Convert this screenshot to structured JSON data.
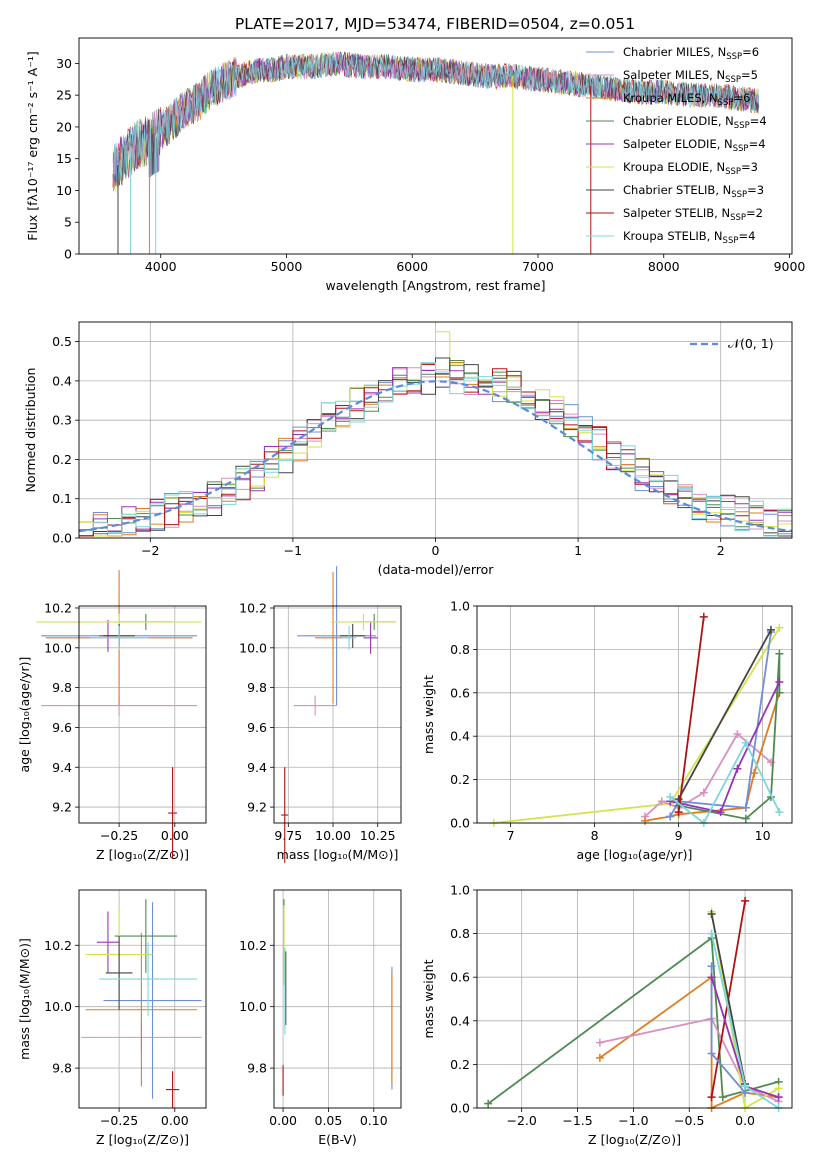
{
  "figure": {
    "title": "PLATE=2017, MJD=53474, FIBERID=0504, z=0.051"
  },
  "colors": {
    "Chabrier MILES": "#6f8fd6",
    "Salpeter MILES": "#d98fc1",
    "Kroupa MILES": "#e07b1f",
    "Chabrier ELODIE": "#4f8a52",
    "Salpeter ELODIE": "#9933b5",
    "Kroupa ELODIE": "#d4e34a",
    "Chabrier STELIB": "#444444",
    "Salpeter STELIB": "#b01212",
    "Kroupa STELIB": "#7ad8dc"
  },
  "chart_data": [
    {
      "id": "spectrum",
      "type": "line",
      "xlabel": "wavelength [Angstrom, rest frame]",
      "ylabel": "Flux [fλ10⁻¹⁷ erg cm⁻² s⁻¹ A⁻¹]",
      "xlim": [
        3350,
        9020
      ],
      "ylim": [
        0,
        34
      ],
      "xticks": [
        4000,
        5000,
        6000,
        7000,
        8000,
        9000
      ],
      "yticks": [
        0,
        5,
        10,
        15,
        20,
        25,
        30
      ],
      "grid": false,
      "legend_position": "top-right",
      "legend": [
        {
          "label": "Chabrier MILES, N",
          "sub": "SSP",
          "suffix": "=6"
        },
        {
          "label": "Salpeter MILES, N",
          "sub": "SSP",
          "suffix": "=5"
        },
        {
          "label": "Kroupa MILES, N",
          "sub": "SSP",
          "suffix": "=6"
        },
        {
          "label": "Chabrier ELODIE, N",
          "sub": "SSP",
          "suffix": "=4"
        },
        {
          "label": "Salpeter ELODIE, N",
          "sub": "SSP",
          "suffix": "=4"
        },
        {
          "label": "Kroupa ELODIE, N",
          "sub": "SSP",
          "suffix": "=3"
        },
        {
          "label": "Chabrier STELIB, N",
          "sub": "SSP",
          "suffix": "=3"
        },
        {
          "label": "Salpeter STELIB, N",
          "sub": "SSP",
          "suffix": "=2"
        },
        {
          "label": "Kroupa STELIB, N",
          "sub": "SSP",
          "suffix": "=4"
        }
      ],
      "x": [
        3620,
        3700,
        3800,
        3900,
        3980,
        4100,
        4200,
        4300,
        4400,
        4500,
        4600,
        4700,
        4800,
        4900,
        5000,
        5200,
        5400,
        5600,
        5800,
        6000,
        6200,
        6400,
        6600,
        6800,
        7000,
        7200,
        7400,
        7600,
        7800,
        8000,
        8200,
        8400,
        8600,
        8760
      ],
      "y": [
        13,
        15,
        17,
        18,
        19,
        21,
        23,
        24,
        26,
        27,
        28,
        28.5,
        29,
        29,
        29.5,
        29.5,
        30,
        29.5,
        29.5,
        29,
        29,
        28.5,
        28,
        28,
        27.5,
        27,
        26.5,
        26,
        25.5,
        25.5,
        25,
        25,
        24.5,
        24
      ]
    },
    {
      "id": "residuals",
      "type": "histogram",
      "xlabel": "(data-model)/error",
      "ylabel": "Normed distribution",
      "xlim": [
        -2.5,
        2.5
      ],
      "ylim": [
        0,
        0.55
      ],
      "xticks": [
        -2,
        -1,
        0,
        1,
        2
      ],
      "yticks": [
        0.0,
        0.1,
        0.2,
        0.3,
        0.4,
        0.5
      ],
      "grid": true,
      "legend_position": "top-right",
      "legend": [
        {
          "label": "𝒩(0, 1)"
        }
      ],
      "bin_width": 0.1,
      "bins_start": -2.5,
      "envelope": [
        0.02,
        0.02,
        0.03,
        0.04,
        0.05,
        0.06,
        0.07,
        0.08,
        0.09,
        0.1,
        0.12,
        0.14,
        0.16,
        0.19,
        0.21,
        0.24,
        0.27,
        0.3,
        0.32,
        0.34,
        0.36,
        0.38,
        0.39,
        0.4,
        0.41,
        0.42,
        0.41,
        0.4,
        0.4,
        0.39,
        0.38,
        0.36,
        0.34,
        0.32,
        0.3,
        0.27,
        0.24,
        0.21,
        0.19,
        0.16,
        0.14,
        0.12,
        0.1,
        0.09,
        0.08,
        0.07,
        0.06,
        0.05,
        0.04,
        0.03
      ]
    },
    {
      "id": "age-vs-Z",
      "type": "errorbar",
      "xlabel": "Z [log₁₀(Z/Z⊙)]",
      "ylabel": "age  [log₁₀(age/yr)]",
      "xlim": [
        -0.43,
        0.14
      ],
      "ylim": [
        9.12,
        10.21
      ],
      "xticks": [
        -0.25,
        0.0
      ],
      "yticks": [
        9.2,
        9.4,
        9.6,
        9.8,
        10.0,
        10.2
      ],
      "grid": true,
      "points": [
        {
          "series": "Chabrier MILES",
          "x": -0.25,
          "y": 10.06,
          "xerr": 0.35,
          "yerr": 0.06
        },
        {
          "series": "Salpeter MILES",
          "x": -0.25,
          "y": 9.71,
          "xerr": 0.35,
          "yerr": 0.05
        },
        {
          "series": "Kroupa MILES",
          "x": -0.25,
          "y": 10.05,
          "xerr": 0.33,
          "yerr": 0.34
        },
        {
          "series": "Chabrier ELODIE",
          "x": -0.13,
          "y": 10.13,
          "xerr": 0.12,
          "yerr": 0.04
        },
        {
          "series": "Salpeter ELODIE",
          "x": -0.3,
          "y": 10.06,
          "xerr": 0.04,
          "yerr": 0.08
        },
        {
          "series": "Kroupa ELODIE",
          "x": -0.25,
          "y": 10.13,
          "xerr": 0.37,
          "yerr": 0.04
        },
        {
          "series": "Chabrier STELIB",
          "x": -0.25,
          "y": 10.06,
          "xerr": 0.07,
          "yerr": 0.06
        },
        {
          "series": "Salpeter STELIB",
          "x": -0.01,
          "y": 9.17,
          "xerr": 0.02,
          "yerr": 0.23
        },
        {
          "series": "Kroupa STELIB",
          "x": -0.25,
          "y": 10.05,
          "xerr": 0.13,
          "yerr": 0.06
        }
      ]
    },
    {
      "id": "age-vs-mass",
      "type": "errorbar",
      "xlabel": "mass [log₁₀(M/M⊙)]",
      "ylabel": "",
      "xlim": [
        9.67,
        10.38
      ],
      "ylim": [
        9.12,
        10.21
      ],
      "xticks": [
        9.75,
        10.0,
        10.25
      ],
      "yticks": [
        9.2,
        9.4,
        9.6,
        9.8,
        10.0,
        10.2
      ],
      "grid": true,
      "points": [
        {
          "series": "Chabrier MILES",
          "x": 10.02,
          "y": 10.06,
          "xerr": 0.22,
          "yerr": 0.35
        },
        {
          "series": "Salpeter MILES",
          "x": 9.9,
          "y": 9.71,
          "xerr": 0.12,
          "yerr": 0.05
        },
        {
          "series": "Kroupa MILES",
          "x": 10.0,
          "y": 10.05,
          "xerr": 0.1,
          "yerr": 0.33
        },
        {
          "series": "Chabrier ELODIE",
          "x": 10.23,
          "y": 10.13,
          "xerr": 0.12,
          "yerr": 0.04
        },
        {
          "series": "Salpeter ELODIE",
          "x": 10.21,
          "y": 10.05,
          "xerr": 0.04,
          "yerr": 0.08
        },
        {
          "series": "Kroupa ELODIE",
          "x": 10.17,
          "y": 10.13,
          "xerr": 0.18,
          "yerr": 0.04
        },
        {
          "series": "Chabrier STELIB",
          "x": 10.11,
          "y": 10.06,
          "xerr": 0.07,
          "yerr": 0.06
        },
        {
          "series": "Salpeter STELIB",
          "x": 9.73,
          "y": 9.16,
          "xerr": 0.02,
          "yerr": 0.24
        },
        {
          "series": "Kroupa STELIB",
          "x": 10.09,
          "y": 10.05,
          "xerr": 0.04,
          "yerr": 0.06
        }
      ]
    },
    {
      "id": "mass-weight-vs-age",
      "type": "line",
      "xlabel": "age  [log₁₀(age/yr)]",
      "ylabel": "mass weight",
      "xlim": [
        6.6,
        10.35
      ],
      "ylim": [
        0,
        1.0
      ],
      "xticks": [
        7,
        8,
        9,
        10
      ],
      "yticks": [
        0.0,
        0.2,
        0.4,
        0.6,
        0.8,
        1.0
      ],
      "grid": true,
      "series": [
        {
          "name": "Kroupa ELODIE",
          "x": [
            6.8,
            8.9,
            10.2
          ],
          "y": [
            0.0,
            0.09,
            0.9
          ]
        },
        {
          "name": "Salpeter MILES",
          "x": [
            8.6,
            8.8,
            9.0,
            9.3,
            9.7,
            10.1
          ],
          "y": [
            0.03,
            0.1,
            0.07,
            0.14,
            0.41,
            0.28
          ]
        },
        {
          "name": "Kroupa MILES",
          "x": [
            8.6,
            8.9,
            9.0,
            9.8,
            9.9,
            10.2
          ],
          "y": [
            0.01,
            0.03,
            0.04,
            0.07,
            0.23,
            0.6
          ]
        },
        {
          "name": "Chabrier MILES",
          "x": [
            8.9,
            9.0,
            9.8,
            10.1
          ],
          "y": [
            0.03,
            0.1,
            0.07,
            0.88
          ]
        },
        {
          "name": "Chabrier ELODIE",
          "x": [
            9.0,
            9.8,
            10.1,
            10.2,
            10.2
          ],
          "y": [
            0.08,
            0.02,
            0.12,
            0.78,
            0.6
          ]
        },
        {
          "name": "Salpeter ELODIE",
          "x": [
            8.9,
            9.5,
            9.7,
            10.2
          ],
          "y": [
            0.1,
            0.05,
            0.25,
            0.65
          ]
        },
        {
          "name": "Chabrier STELIB",
          "x": [
            9.0,
            10.1
          ],
          "y": [
            0.11,
            0.89
          ]
        },
        {
          "name": "Salpeter STELIB",
          "x": [
            9.0,
            9.3
          ],
          "y": [
            0.05,
            0.95
          ]
        },
        {
          "name": "Kroupa STELIB",
          "x": [
            8.9,
            9.3,
            9.8,
            10.2
          ],
          "y": [
            0.12,
            0.0,
            0.37,
            0.05
          ]
        }
      ]
    },
    {
      "id": "mass-vs-Z",
      "type": "errorbar",
      "xlabel": "Z [log₁₀(Z/Z⊙)]",
      "ylabel": "mass [log₁₀(M/M⊙)]",
      "xlim": [
        -0.43,
        0.14
      ],
      "ylim": [
        9.67,
        10.38
      ],
      "xticks": [
        -0.25,
        0.0
      ],
      "yticks": [
        9.8,
        10.0,
        10.2
      ],
      "grid": true,
      "points": [
        {
          "series": "Chabrier MILES",
          "x": -0.1,
          "y": 10.02,
          "xerr": 0.22,
          "yerr": 0.32
        },
        {
          "series": "Salpeter MILES",
          "x": -0.15,
          "y": 9.9,
          "xerr": 0.27,
          "yerr": 0.05
        },
        {
          "series": "Kroupa MILES",
          "x": -0.15,
          "y": 9.99,
          "xerr": 0.25,
          "yerr": 0.25
        },
        {
          "series": "Chabrier ELODIE",
          "x": -0.13,
          "y": 10.23,
          "xerr": 0.14,
          "yerr": 0.12
        },
        {
          "series": "Salpeter ELODIE",
          "x": -0.3,
          "y": 10.21,
          "xerr": 0.05,
          "yerr": 0.1
        },
        {
          "series": "Kroupa ELODIE",
          "x": -0.25,
          "y": 10.17,
          "xerr": 0.15,
          "yerr": 0.15
        },
        {
          "series": "Chabrier STELIB",
          "x": -0.25,
          "y": 10.11,
          "xerr": 0.06,
          "yerr": 0.12
        },
        {
          "series": "Salpeter STELIB",
          "x": -0.01,
          "y": 9.73,
          "xerr": 0.03,
          "yerr": 0.06
        },
        {
          "series": "Kroupa STELIB",
          "x": -0.12,
          "y": 10.09,
          "xerr": 0.22,
          "yerr": 0.12
        }
      ]
    },
    {
      "id": "mass-vs-EBV",
      "type": "errorbar",
      "xlabel": "E(B-V)",
      "ylabel": "",
      "xlim": [
        -0.01,
        0.13
      ],
      "ylim": [
        9.67,
        10.38
      ],
      "xticks": [
        0.0,
        0.05,
        0.1
      ],
      "yticks": [
        9.8,
        10.0,
        10.2
      ],
      "grid": true,
      "points": [
        {
          "series": "Chabrier MILES",
          "x": 0.12,
          "y": 9.93,
          "xerr": 0,
          "yerr": 0.2
        },
        {
          "series": "Kroupa MILES",
          "x": 0.12,
          "y": 9.93,
          "xerr": 0,
          "yerr": 0.18
        },
        {
          "series": "Chabrier ELODIE",
          "x": 0.001,
          "y": 10.22,
          "xerr": 0,
          "yerr": 0.13
        },
        {
          "series": "Kroupa ELODIE",
          "x": 0.001,
          "y": 10.2,
          "xerr": 0,
          "yerr": 0.13
        },
        {
          "series": "Chabrier STELIB",
          "x": 0.003,
          "y": 10.06,
          "xerr": 0,
          "yerr": 0.12
        },
        {
          "series": "Salpeter STELIB",
          "x": 0.0,
          "y": 9.76,
          "xerr": 0,
          "yerr": 0.05
        },
        {
          "series": "Kroupa STELIB",
          "x": 0.002,
          "y": 10.05,
          "xerr": 0,
          "yerr": 0.14
        }
      ]
    },
    {
      "id": "mass-weight-vs-Z",
      "type": "line",
      "xlabel": "Z [log₁₀(Z/Z⊙)]",
      "ylabel": "mass weight",
      "xlim": [
        -2.4,
        0.42
      ],
      "ylim": [
        0,
        1.0
      ],
      "xticks": [
        -2.0,
        -1.5,
        -1.0,
        -0.5,
        0.0
      ],
      "yticks": [
        0.0,
        0.2,
        0.4,
        0.6,
        0.8,
        1.0
      ],
      "grid": true,
      "series": [
        {
          "name": "Chabrier ELODIE",
          "x": [
            -2.3,
            -0.3,
            -0.2,
            0.3
          ],
          "y": [
            0.02,
            0.78,
            0.05,
            0.12
          ]
        },
        {
          "name": "Kroupa MILES",
          "x": [
            -1.3,
            -0.3,
            -0.3,
            0.0,
            0.3
          ],
          "y": [
            0.23,
            0.6,
            0.0,
            0.07,
            0.05
          ]
        },
        {
          "name": "Salpeter MILES",
          "x": [
            -1.3,
            -0.3,
            0.0,
            0.3
          ],
          "y": [
            0.3,
            0.41,
            0.1,
            0.03
          ]
        },
        {
          "name": "Salpeter STELIB",
          "x": [
            -0.3,
            0.0
          ],
          "y": [
            0.05,
            0.95
          ]
        },
        {
          "name": "Kroupa ELODIE",
          "x": [
            -0.3,
            0.0,
            0.3
          ],
          "y": [
            0.9,
            0.0,
            0.09
          ]
        },
        {
          "name": "Chabrier MILES",
          "x": [
            -0.3,
            -0.3,
            0.0
          ],
          "y": [
            0.65,
            0.25,
            0.07
          ]
        },
        {
          "name": "Salpeter ELODIE",
          "x": [
            -0.3,
            0.0,
            0.3
          ],
          "y": [
            0.6,
            0.1,
            0.05
          ]
        },
        {
          "name": "Chabrier STELIB",
          "x": [
            -0.3,
            0.0
          ],
          "y": [
            0.89,
            0.11
          ]
        },
        {
          "name": "Kroupa STELIB",
          "x": [
            -0.3,
            0.0,
            0.3
          ],
          "y": [
            0.8,
            0.1,
            0.0
          ]
        }
      ]
    }
  ]
}
